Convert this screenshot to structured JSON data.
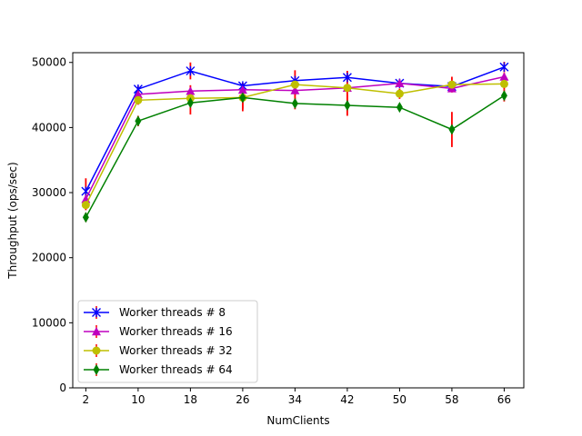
{
  "chart_data": {
    "type": "line",
    "title": "",
    "xlabel": "NumClients",
    "ylabel": "Throughput (ops/sec)",
    "x": [
      2,
      10,
      18,
      26,
      34,
      42,
      50,
      58,
      66
    ],
    "xlim": [
      0,
      69
    ],
    "ylim": [
      0,
      51500
    ],
    "yticks": [
      0,
      10000,
      20000,
      30000,
      40000,
      50000
    ],
    "grid": false,
    "legend_position": "lower-left",
    "error_bar_color": "#ff0000",
    "series": [
      {
        "name": "Worker threads # 8",
        "color": "#0000ff",
        "marker": "x-star",
        "values": [
          30200,
          45900,
          48700,
          46400,
          47200,
          47700,
          46800,
          46300,
          49300
        ],
        "errors": [
          2000,
          500,
          1300,
          500,
          700,
          500,
          600,
          700,
          800
        ]
      },
      {
        "name": "Worker threads # 16",
        "color": "#bf00bf",
        "marker": "triangle-up",
        "values": [
          29000,
          45100,
          45600,
          45800,
          45700,
          46100,
          46800,
          46000,
          47800
        ],
        "errors": [
          1000,
          600,
          900,
          600,
          800,
          500,
          400,
          600,
          600
        ]
      },
      {
        "name": "Worker threads # 32",
        "color": "#bfbf00",
        "marker": "circle",
        "values": [
          28100,
          44200,
          44500,
          44600,
          46600,
          46100,
          45200,
          46600,
          46700
        ],
        "errors": [
          800,
          700,
          900,
          2100,
          2200,
          2600,
          800,
          1200,
          900
        ]
      },
      {
        "name": "Worker threads # 64",
        "color": "#008000",
        "marker": "thin-diamond",
        "values": [
          26200,
          41000,
          43800,
          44600,
          43700,
          43400,
          43100,
          39700,
          44900
        ],
        "errors": [
          700,
          800,
          1800,
          1700,
          900,
          1600,
          500,
          2700,
          900
        ]
      }
    ]
  }
}
